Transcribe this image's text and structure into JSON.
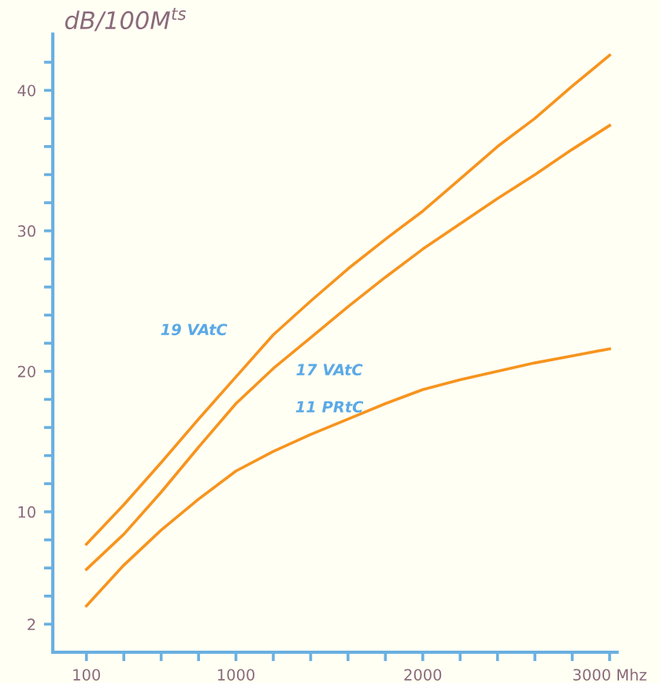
{
  "chart_data": {
    "type": "line",
    "ylabel": "dB/100M$^{ts}$",
    "categories": [
      "100",
      null,
      null,
      null,
      "1000",
      null,
      null,
      null,
      null,
      "2000",
      null,
      null,
      null,
      null,
      "3000 Mhz"
    ],
    "ylim": [
      0,
      44
    ],
    "yticks": [
      2,
      {
        "value": 4,
        "label": null
      },
      {
        "value": 6,
        "label": null
      },
      {
        "value": 8,
        "label": null
      },
      10,
      {
        "value": 12,
        "label": null
      },
      {
        "value": 14,
        "label": null
      },
      {
        "value": 16,
        "label": null
      },
      {
        "value": 18,
        "label": null
      },
      20,
      {
        "value": 22,
        "label": null
      },
      {
        "value": 24,
        "label": null
      },
      {
        "value": 26,
        "label": null
      },
      {
        "value": 28,
        "label": null
      },
      30,
      {
        "value": 32,
        "label": null
      },
      {
        "value": 34,
        "label": null
      },
      {
        "value": 36,
        "label": null
      },
      {
        "value": 38,
        "label": null
      },
      40,
      {
        "value": 42,
        "label": null
      }
    ],
    "grid": false,
    "legend": false,
    "marker": "none",
    "line_style": "solid",
    "series": [
      {
        "color": "#f7941d",
        "values": [
          7.7,
          10.5,
          13.5,
          16.6,
          19.6,
          22.6,
          25.0,
          27.3,
          29.4,
          31.4,
          33.7,
          36.0,
          38.0,
          40.3,
          42.5
        ]
      },
      {
        "color": "#f7941d",
        "values": [
          5.9,
          8.4,
          11.4,
          14.6,
          17.7,
          20.2,
          22.4,
          24.6,
          26.7,
          28.7,
          30.5,
          32.3,
          34.0,
          35.8,
          37.5
        ]
      },
      {
        "color": "#f7941d",
        "values": [
          3.3,
          6.2,
          8.7,
          10.9,
          12.9,
          14.3,
          15.5,
          16.6,
          17.7,
          18.7,
          19.4,
          20.0,
          20.6,
          21.1,
          21.6
        ]
      }
    ],
    "annotations": [
      "19 VAtC",
      "17 VAtC",
      "11 PRtC"
    ]
  }
}
